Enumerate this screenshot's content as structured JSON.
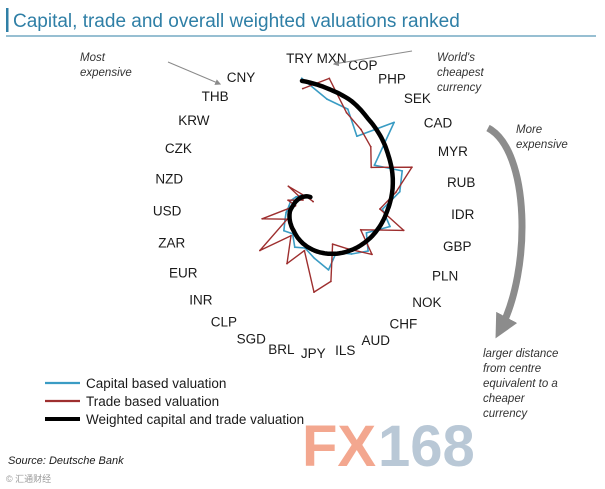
{
  "title": "Capital, trade and overall weighted valuations ranked",
  "chart_data": {
    "type": "line",
    "subtype": "radial-ranking",
    "title": "Capital, trade and overall weighted valuations ranked",
    "currencies": [
      "TRY",
      "MXN",
      "COP",
      "PHP",
      "SEK",
      "CAD",
      "MYR",
      "RUB",
      "IDR",
      "GBP",
      "PLN",
      "NOK",
      "CHF",
      "AUD",
      "ILS",
      "JPY",
      "BRL",
      "SGD",
      "CLP",
      "INR",
      "EUR",
      "ZAR",
      "USD",
      "NZD",
      "CZK",
      "KRW",
      "THB",
      "CNY"
    ],
    "series": [
      {
        "name": "Capital based valuation",
        "color": "#3a9cc4",
        "values": [
          0.98,
          0.82,
          0.78,
          0.62,
          0.88,
          0.55,
          0.72,
          0.66,
          0.52,
          0.6,
          0.45,
          0.54,
          0.47,
          0.4,
          0.51,
          0.41,
          0.34,
          0.36,
          0.28,
          0.31,
          0.26,
          0.23,
          0.2,
          0.19,
          0.16,
          0.13,
          0.1,
          0.06
        ]
      },
      {
        "name": "Trade based valuation",
        "color": "#9e2f2f",
        "values": [
          0.9,
          0.98,
          0.75,
          0.68,
          0.62,
          0.52,
          0.8,
          0.63,
          0.5,
          0.71,
          0.4,
          0.58,
          0.42,
          0.33,
          0.6,
          0.67,
          0.36,
          0.5,
          0.3,
          0.55,
          0.24,
          0.42,
          0.15,
          0.21,
          0.1,
          0.25,
          0.07,
          0.03
        ]
      },
      {
        "name": "Weighted capital and trade valuation",
        "color": "#000000",
        "values": [
          0.96,
          0.9,
          0.85,
          0.78,
          0.73,
          0.68,
          0.64,
          0.6,
          0.56,
          0.53,
          0.5,
          0.47,
          0.44,
          0.41,
          0.38,
          0.35,
          0.32,
          0.29,
          0.26,
          0.24,
          0.22,
          0.2,
          0.17,
          0.15,
          0.13,
          0.11,
          0.09,
          0.07
        ]
      }
    ],
    "annotations": {
      "most_expensive": "Most expensive",
      "cheapest": "World's cheapest currency",
      "more_expensive": "More expensive",
      "distance_note": "larger distance from centre equivalent to a cheaper currency"
    },
    "legend": {
      "placement": "bottom-left"
    }
  },
  "source": "Source: Deutsche Bank",
  "watermark": {
    "brand": "FX168",
    "small": "© 汇通财经",
    "color_fx": "#f3a78f",
    "color_168": "#b9c8d6"
  }
}
